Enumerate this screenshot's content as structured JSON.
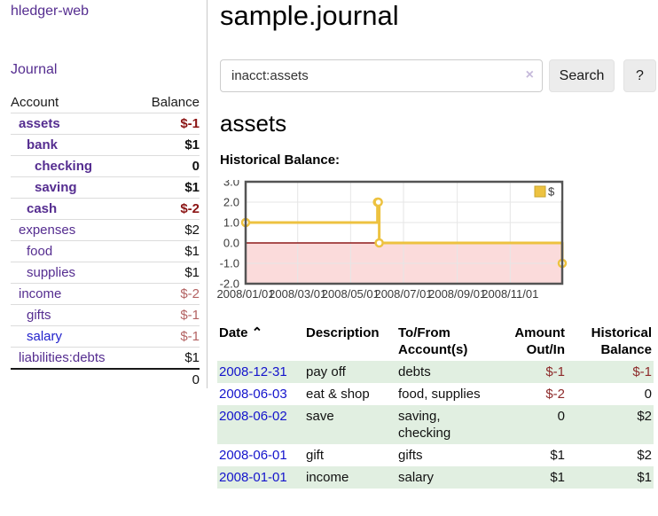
{
  "sidebar": {
    "brand": "hledger-web",
    "journal_link": "Journal",
    "accounts": {
      "header_account": "Account",
      "header_balance": "Balance",
      "rows": [
        {
          "name": "assets",
          "indent": 1,
          "emph": true,
          "balance": "$-1",
          "neg": true
        },
        {
          "name": "bank",
          "indent": 2,
          "emph": true,
          "balance": "$1",
          "neg": false
        },
        {
          "name": "checking",
          "indent": 3,
          "emph": true,
          "balance": "0",
          "neg": false
        },
        {
          "name": "saving",
          "indent": 3,
          "emph": true,
          "balance": "$1",
          "neg": false
        },
        {
          "name": "cash",
          "indent": 2,
          "emph": true,
          "balance": "$-2",
          "neg": true
        },
        {
          "name": "expenses",
          "indent": 1,
          "emph": false,
          "balance": "$2",
          "neg": false
        },
        {
          "name": "food",
          "indent": 2,
          "emph": false,
          "balance": "$1",
          "neg": false
        },
        {
          "name": "supplies",
          "indent": 2,
          "emph": false,
          "balance": "$1",
          "neg": false
        },
        {
          "name": "income",
          "indent": 1,
          "emph": false,
          "balance": "$-2",
          "neg": true
        },
        {
          "name": "gifts",
          "indent": 2,
          "emph": false,
          "balance": "$-1",
          "neg": true
        },
        {
          "name": "salary",
          "indent": 2,
          "emph": false,
          "balance": "$-1",
          "neg": true,
          "unvisited": true
        },
        {
          "name": "liabilities:debts",
          "indent": 1,
          "emph": false,
          "balance": "$1",
          "neg": false
        }
      ],
      "total": "0"
    }
  },
  "main": {
    "title": "sample.journal",
    "search": {
      "value": "inacct:assets",
      "clear_icon": "×",
      "search_button": "Search",
      "help_button": "?"
    },
    "heading": "assets",
    "chart_title": "Historical Balance:"
  },
  "chart_data": {
    "type": "line",
    "line_style": "step-after",
    "title": "Historical Balance:",
    "series": [
      {
        "name": "$",
        "color": "#edc240",
        "points": [
          [
            "2008-01-01",
            1
          ],
          [
            "2008-06-01",
            2
          ],
          [
            "2008-06-02",
            2
          ],
          [
            "2008-06-03",
            0
          ],
          [
            "2008-12-31",
            -1
          ]
        ]
      }
    ],
    "x_range": [
      "2008-01-01",
      "2008-12-31"
    ],
    "x_tick_labels": [
      "2008/01/01",
      "2008/03/01",
      "2008/05/01",
      "2008/07/01",
      "2008/09/01",
      "2008/11/01"
    ],
    "y_ticks": [
      3.0,
      2.0,
      1.0,
      0.0,
      -1.0,
      -2.0
    ],
    "ylim": [
      -2,
      3
    ],
    "grid": true,
    "legend": {
      "label": "$",
      "position": "top-right"
    },
    "negative_region_color": "#fbdbdb",
    "zero_line_color": "#8e1a1a",
    "grid_color": "#e6e6e6",
    "border_color": "#545454"
  },
  "register": {
    "headers": [
      {
        "label": "Date",
        "sort_indicator": "⌃",
        "align": "left"
      },
      {
        "label": "Description",
        "align": "left"
      },
      {
        "label": "To/From Account(s)",
        "align": "left"
      },
      {
        "label": "Amount Out/In",
        "align": "right"
      },
      {
        "label": "Historical Balance",
        "align": "right"
      }
    ],
    "rows": [
      {
        "date": "2008-12-31",
        "description": "pay off",
        "accounts": "debts",
        "amount": "$-1",
        "amount_neg": true,
        "balance": "$-1",
        "balance_neg": true
      },
      {
        "date": "2008-06-03",
        "description": "eat & shop",
        "accounts": "food, supplies",
        "amount": "$-2",
        "amount_neg": true,
        "balance": "0",
        "balance_neg": false
      },
      {
        "date": "2008-06-02",
        "description": "save",
        "accounts": "saving, checking",
        "amount": "0",
        "amount_neg": false,
        "balance": "$2",
        "balance_neg": false
      },
      {
        "date": "2008-06-01",
        "description": "gift",
        "accounts": "gifts",
        "amount": "$1",
        "amount_neg": false,
        "balance": "$2",
        "balance_neg": false
      },
      {
        "date": "2008-01-01",
        "description": "income",
        "accounts": "salary",
        "amount": "$1",
        "amount_neg": false,
        "balance": "$1",
        "balance_neg": false
      }
    ]
  }
}
